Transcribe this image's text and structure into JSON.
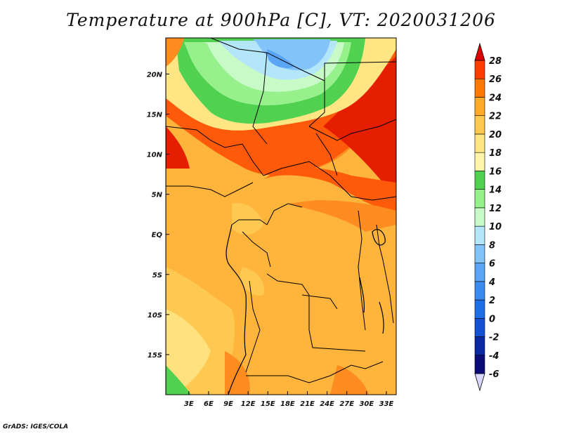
{
  "title": "Temperature at 900hPa [C], VT: 2020031206",
  "footer": "GrADS: IGES/COLA",
  "map": {
    "lon_range": [
      -0.5,
      34.5
    ],
    "lat_range": [
      -20,
      24.5
    ],
    "lon_ticks": [
      {
        "value": 3,
        "label": "3E"
      },
      {
        "value": 6,
        "label": "6E"
      },
      {
        "value": 9,
        "label": "9E"
      },
      {
        "value": 12,
        "label": "12E"
      },
      {
        "value": 15,
        "label": "15E"
      },
      {
        "value": 18,
        "label": "18E"
      },
      {
        "value": 21,
        "label": "21E"
      },
      {
        "value": 24,
        "label": "24E"
      },
      {
        "value": 27,
        "label": "27E"
      },
      {
        "value": 30,
        "label": "30E"
      },
      {
        "value": 33,
        "label": "33E"
      }
    ],
    "lat_ticks": [
      {
        "value": 20,
        "label": "20N"
      },
      {
        "value": 15,
        "label": "15N"
      },
      {
        "value": 10,
        "label": "10N"
      },
      {
        "value": 5,
        "label": "5N"
      },
      {
        "value": 0,
        "label": "EQ"
      },
      {
        "value": -5,
        "label": "5S"
      },
      {
        "value": -10,
        "label": "10S"
      },
      {
        "value": -15,
        "label": "15S"
      }
    ]
  },
  "colorbar": {
    "levels": [
      "-6",
      "-4",
      "-2",
      "0",
      "2",
      "4",
      "6",
      "8",
      "10",
      "12",
      "14",
      "16",
      "18",
      "20",
      "22",
      "24",
      "26",
      "28"
    ],
    "colors": [
      "#d7d7ff",
      "#0a0a78",
      "#0a28a0",
      "#1450d2",
      "#1e6ee6",
      "#3c8cf0",
      "#5aa5f5",
      "#82c3fa",
      "#b4e6fa",
      "#c8fac8",
      "#96f08c",
      "#50d250",
      "#fff5aa",
      "#ffe682",
      "#ffc850",
      "#ffaa28",
      "#ff7800",
      "#ff3c00",
      "#dc0000"
    ]
  }
}
